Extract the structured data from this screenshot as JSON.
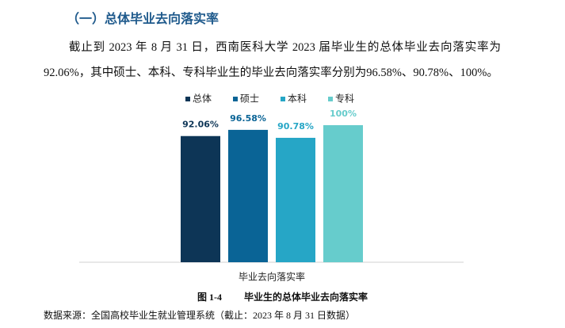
{
  "heading": "（一）总体毕业去向落实率",
  "paragraph": "截止到 2023 年 8 月 31 日，西南医科大学 2023 届毕业生的总体毕业去向落实率为92.06%，其中硕士、本科、专科毕业生的毕业去向落实率分别为96.58%、90.78%、100%。",
  "chart_data": {
    "type": "bar",
    "categories": [
      "毕业去向落实率"
    ],
    "series": [
      {
        "name": "总体",
        "color": "#0d3556",
        "values": [
          92.06
        ],
        "value_labels": [
          "92.06%"
        ]
      },
      {
        "name": "硕士",
        "color": "#0a6496",
        "values": [
          96.58
        ],
        "value_labels": [
          "96.58%"
        ]
      },
      {
        "name": "本科",
        "color": "#26a6c6",
        "values": [
          90.78
        ],
        "value_labels": [
          "90.78%"
        ]
      },
      {
        "name": "专科",
        "color": "#66cccc",
        "values": [
          100
        ],
        "value_labels": [
          "100%"
        ]
      }
    ],
    "ylim": [
      0,
      100
    ]
  },
  "caption": {
    "number": "图 1-4",
    "title": "毕业生的总体毕业去向落实率"
  },
  "source": "数据来源：全国高校毕业生就业管理系统（截止：2023 年 8 月 31 日数据）"
}
